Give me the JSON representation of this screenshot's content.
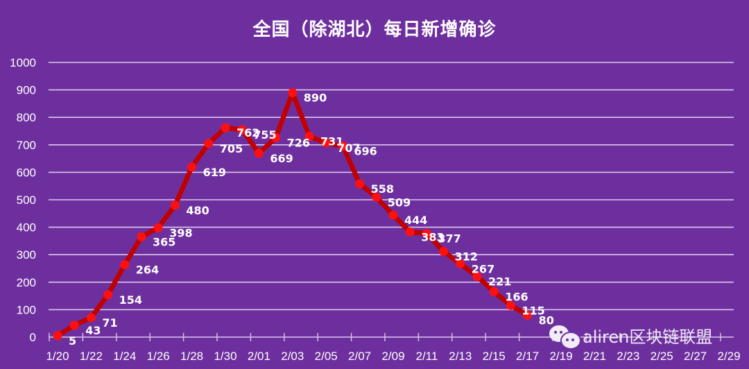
{
  "chart_data": {
    "type": "line",
    "title": "全国（除湖北）每日新增确诊",
    "xlabel": "",
    "ylabel": "",
    "ylim": [
      0,
      1000
    ],
    "yticks": [
      0,
      100,
      200,
      300,
      400,
      500,
      600,
      700,
      800,
      900,
      1000
    ],
    "grid": true,
    "legend": null,
    "xtick_labels": [
      "1/20",
      "1/22",
      "1/24",
      "1/26",
      "1/28",
      "1/30",
      "2/01",
      "2/03",
      "2/05",
      "2/07",
      "2/09",
      "2/11",
      "2/13",
      "2/15",
      "2/17",
      "2/19",
      "2/21",
      "2/23",
      "2/25",
      "2/27",
      "2/29"
    ],
    "x": [
      "1/20",
      "1/21",
      "1/22",
      "1/23",
      "1/24",
      "1/25",
      "1/26",
      "1/27",
      "1/28",
      "1/29",
      "1/30",
      "1/31",
      "2/01",
      "2/02",
      "2/03",
      "2/04",
      "2/05",
      "2/06",
      "2/07",
      "2/08",
      "2/09",
      "2/10",
      "2/11",
      "2/12",
      "2/13",
      "2/14",
      "2/15",
      "2/16",
      "2/17"
    ],
    "series": [
      {
        "name": "每日新增确诊",
        "color": "#c00000",
        "marker_color": "#ff0000",
        "values": [
          5,
          43,
          71,
          154,
          264,
          365,
          398,
          480,
          619,
          705,
          762,
          755,
          669,
          726,
          890,
          731,
          707,
          696,
          558,
          509,
          444,
          383,
          377,
          312,
          267,
          221,
          166,
          115,
          80
        ]
      }
    ]
  },
  "colors": {
    "background": "#6e2f9e",
    "gridline": "#d9c7ea",
    "line": "#c00000",
    "marker": "#ff1010",
    "text": "#ffffff"
  },
  "watermark": {
    "icon": "wechat-icon",
    "text": "aliren区块链联盟"
  }
}
